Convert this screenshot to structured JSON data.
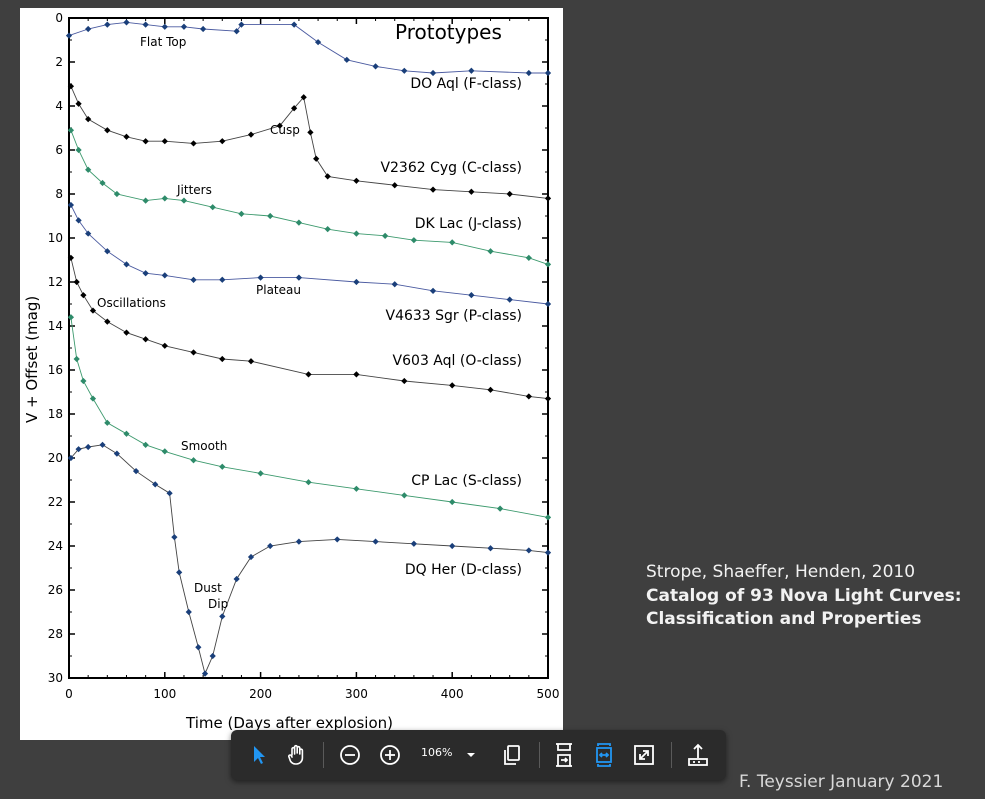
{
  "figure": {
    "chart_data": {
      "type": "scatter",
      "title": "Prototypes",
      "xlabel": "Time (Days after explosion)",
      "ylabel": "V + Offset (mag)",
      "xlim": [
        0,
        500
      ],
      "ylim": [
        30,
        0
      ],
      "y_inverted": true,
      "x_ticks": [
        0,
        100,
        200,
        300,
        400,
        500
      ],
      "y_ticks": [
        0,
        2,
        4,
        6,
        8,
        10,
        12,
        14,
        16,
        18,
        20,
        22,
        24,
        26,
        28,
        30
      ],
      "series": [
        {
          "name": "DO Aql (F-class)",
          "color": "#1a3f7a",
          "points": [
            [
              0,
              0.8
            ],
            [
              20,
              0.5
            ],
            [
              40,
              0.3
            ],
            [
              60,
              0.2
            ],
            [
              80,
              0.3
            ],
            [
              100,
              0.4
            ],
            [
              120,
              0.4
            ],
            [
              140,
              0.5
            ],
            [
              175,
              0.6
            ],
            [
              180,
              0.3
            ],
            [
              235,
              0.3
            ],
            [
              260,
              1.1
            ],
            [
              290,
              1.9
            ],
            [
              320,
              2.2
            ],
            [
              350,
              2.4
            ],
            [
              380,
              2.5
            ],
            [
              420,
              2.4
            ],
            [
              480,
              2.5
            ],
            [
              500,
              2.5
            ]
          ]
        },
        {
          "name": "V2362 Cyg (C-class)",
          "color": "#000000",
          "points": [
            [
              2,
              3.1
            ],
            [
              10,
              3.9
            ],
            [
              20,
              4.6
            ],
            [
              40,
              5.1
            ],
            [
              60,
              5.4
            ],
            [
              80,
              5.6
            ],
            [
              100,
              5.6
            ],
            [
              130,
              5.7
            ],
            [
              160,
              5.6
            ],
            [
              190,
              5.3
            ],
            [
              220,
              4.9
            ],
            [
              235,
              4.1
            ],
            [
              245,
              3.6
            ],
            [
              252,
              5.2
            ],
            [
              258,
              6.4
            ],
            [
              270,
              7.2
            ],
            [
              300,
              7.4
            ],
            [
              340,
              7.6
            ],
            [
              380,
              7.8
            ],
            [
              420,
              7.9
            ],
            [
              460,
              8.0
            ],
            [
              500,
              8.2
            ]
          ]
        },
        {
          "name": "DK Lac (J-class)",
          "color": "#2e8b6a",
          "points": [
            [
              2,
              5.1
            ],
            [
              10,
              6.0
            ],
            [
              20,
              6.9
            ],
            [
              35,
              7.5
            ],
            [
              50,
              8.0
            ],
            [
              80,
              8.3
            ],
            [
              100,
              8.2
            ],
            [
              120,
              8.3
            ],
            [
              150,
              8.6
            ],
            [
              180,
              8.9
            ],
            [
              210,
              9.0
            ],
            [
              240,
              9.3
            ],
            [
              270,
              9.6
            ],
            [
              300,
              9.8
            ],
            [
              330,
              9.9
            ],
            [
              360,
              10.1
            ],
            [
              400,
              10.2
            ],
            [
              440,
              10.6
            ],
            [
              480,
              10.9
            ],
            [
              500,
              11.2
            ]
          ]
        },
        {
          "name": "V4633 Sgr (P-class)",
          "color": "#1a3f7a",
          "points": [
            [
              2,
              8.5
            ],
            [
              10,
              9.2
            ],
            [
              20,
              9.8
            ],
            [
              40,
              10.6
            ],
            [
              60,
              11.2
            ],
            [
              80,
              11.6
            ],
            [
              100,
              11.7
            ],
            [
              130,
              11.9
            ],
            [
              160,
              11.9
            ],
            [
              200,
              11.8
            ],
            [
              240,
              11.8
            ],
            [
              300,
              12.0
            ],
            [
              340,
              12.1
            ],
            [
              380,
              12.4
            ],
            [
              420,
              12.6
            ],
            [
              460,
              12.8
            ],
            [
              500,
              13.0
            ]
          ]
        },
        {
          "name": "V603 Aql (O-class)",
          "color": "#000000",
          "points": [
            [
              2,
              10.9
            ],
            [
              8,
              12.0
            ],
            [
              15,
              12.6
            ],
            [
              25,
              13.3
            ],
            [
              40,
              13.8
            ],
            [
              60,
              14.3
            ],
            [
              80,
              14.6
            ],
            [
              100,
              14.9
            ],
            [
              130,
              15.2
            ],
            [
              160,
              15.5
            ],
            [
              190,
              15.6
            ],
            [
              250,
              16.2
            ],
            [
              300,
              16.2
            ],
            [
              350,
              16.5
            ],
            [
              400,
              16.7
            ],
            [
              440,
              16.9
            ],
            [
              480,
              17.2
            ],
            [
              500,
              17.3
            ]
          ]
        },
        {
          "name": "CP Lac (S-class)",
          "color": "#2e8b6a",
          "points": [
            [
              2,
              13.6
            ],
            [
              8,
              15.5
            ],
            [
              15,
              16.5
            ],
            [
              25,
              17.3
            ],
            [
              40,
              18.4
            ],
            [
              60,
              18.9
            ],
            [
              80,
              19.4
            ],
            [
              100,
              19.7
            ],
            [
              130,
              20.1
            ],
            [
              160,
              20.4
            ],
            [
              200,
              20.7
            ],
            [
              250,
              21.1
            ],
            [
              300,
              21.4
            ],
            [
              350,
              21.7
            ],
            [
              400,
              22.0
            ],
            [
              450,
              22.3
            ],
            [
              500,
              22.7
            ]
          ]
        },
        {
          "name": "DQ Her (D-class)",
          "color": "#1a3f7a",
          "points": [
            [
              2,
              20.0
            ],
            [
              10,
              19.6
            ],
            [
              20,
              19.5
            ],
            [
              35,
              19.4
            ],
            [
              50,
              19.8
            ],
            [
              70,
              20.6
            ],
            [
              90,
              21.2
            ],
            [
              105,
              21.6
            ],
            [
              110,
              23.6
            ],
            [
              115,
              25.2
            ],
            [
              125,
              27.0
            ],
            [
              135,
              28.6
            ],
            [
              142,
              29.8
            ],
            [
              150,
              29.0
            ],
            [
              160,
              27.2
            ],
            [
              175,
              25.5
            ],
            [
              190,
              24.5
            ],
            [
              210,
              24.0
            ],
            [
              240,
              23.8
            ],
            [
              280,
              23.7
            ],
            [
              320,
              23.8
            ],
            [
              360,
              23.9
            ],
            [
              400,
              24.0
            ],
            [
              440,
              24.1
            ],
            [
              480,
              24.2
            ],
            [
              500,
              24.3
            ]
          ]
        }
      ],
      "annotations": [
        "Flat Top",
        "Cusp",
        "Jitters",
        "Plateau",
        "Oscillations",
        "Smooth",
        "Dust",
        "Dip"
      ]
    }
  },
  "caption": {
    "authors": "Strope, Shaeffer, Henden, 2010",
    "title_line1": "Catalog of 93 Nova Light Curves:",
    "title_line2": "Classification and Properties"
  },
  "credit": "F. Teyssier January 2021",
  "toolbar": {
    "zoom": "106%",
    "accent_color": "#2196f3",
    "icons": [
      "select-icon",
      "hand-icon",
      "zoom-out-icon",
      "zoom-in-icon",
      "chevron-down-icon",
      "copy-icon",
      "fit-page-icon",
      "fit-width-icon",
      "fullscreen-icon",
      "share-icon"
    ]
  }
}
